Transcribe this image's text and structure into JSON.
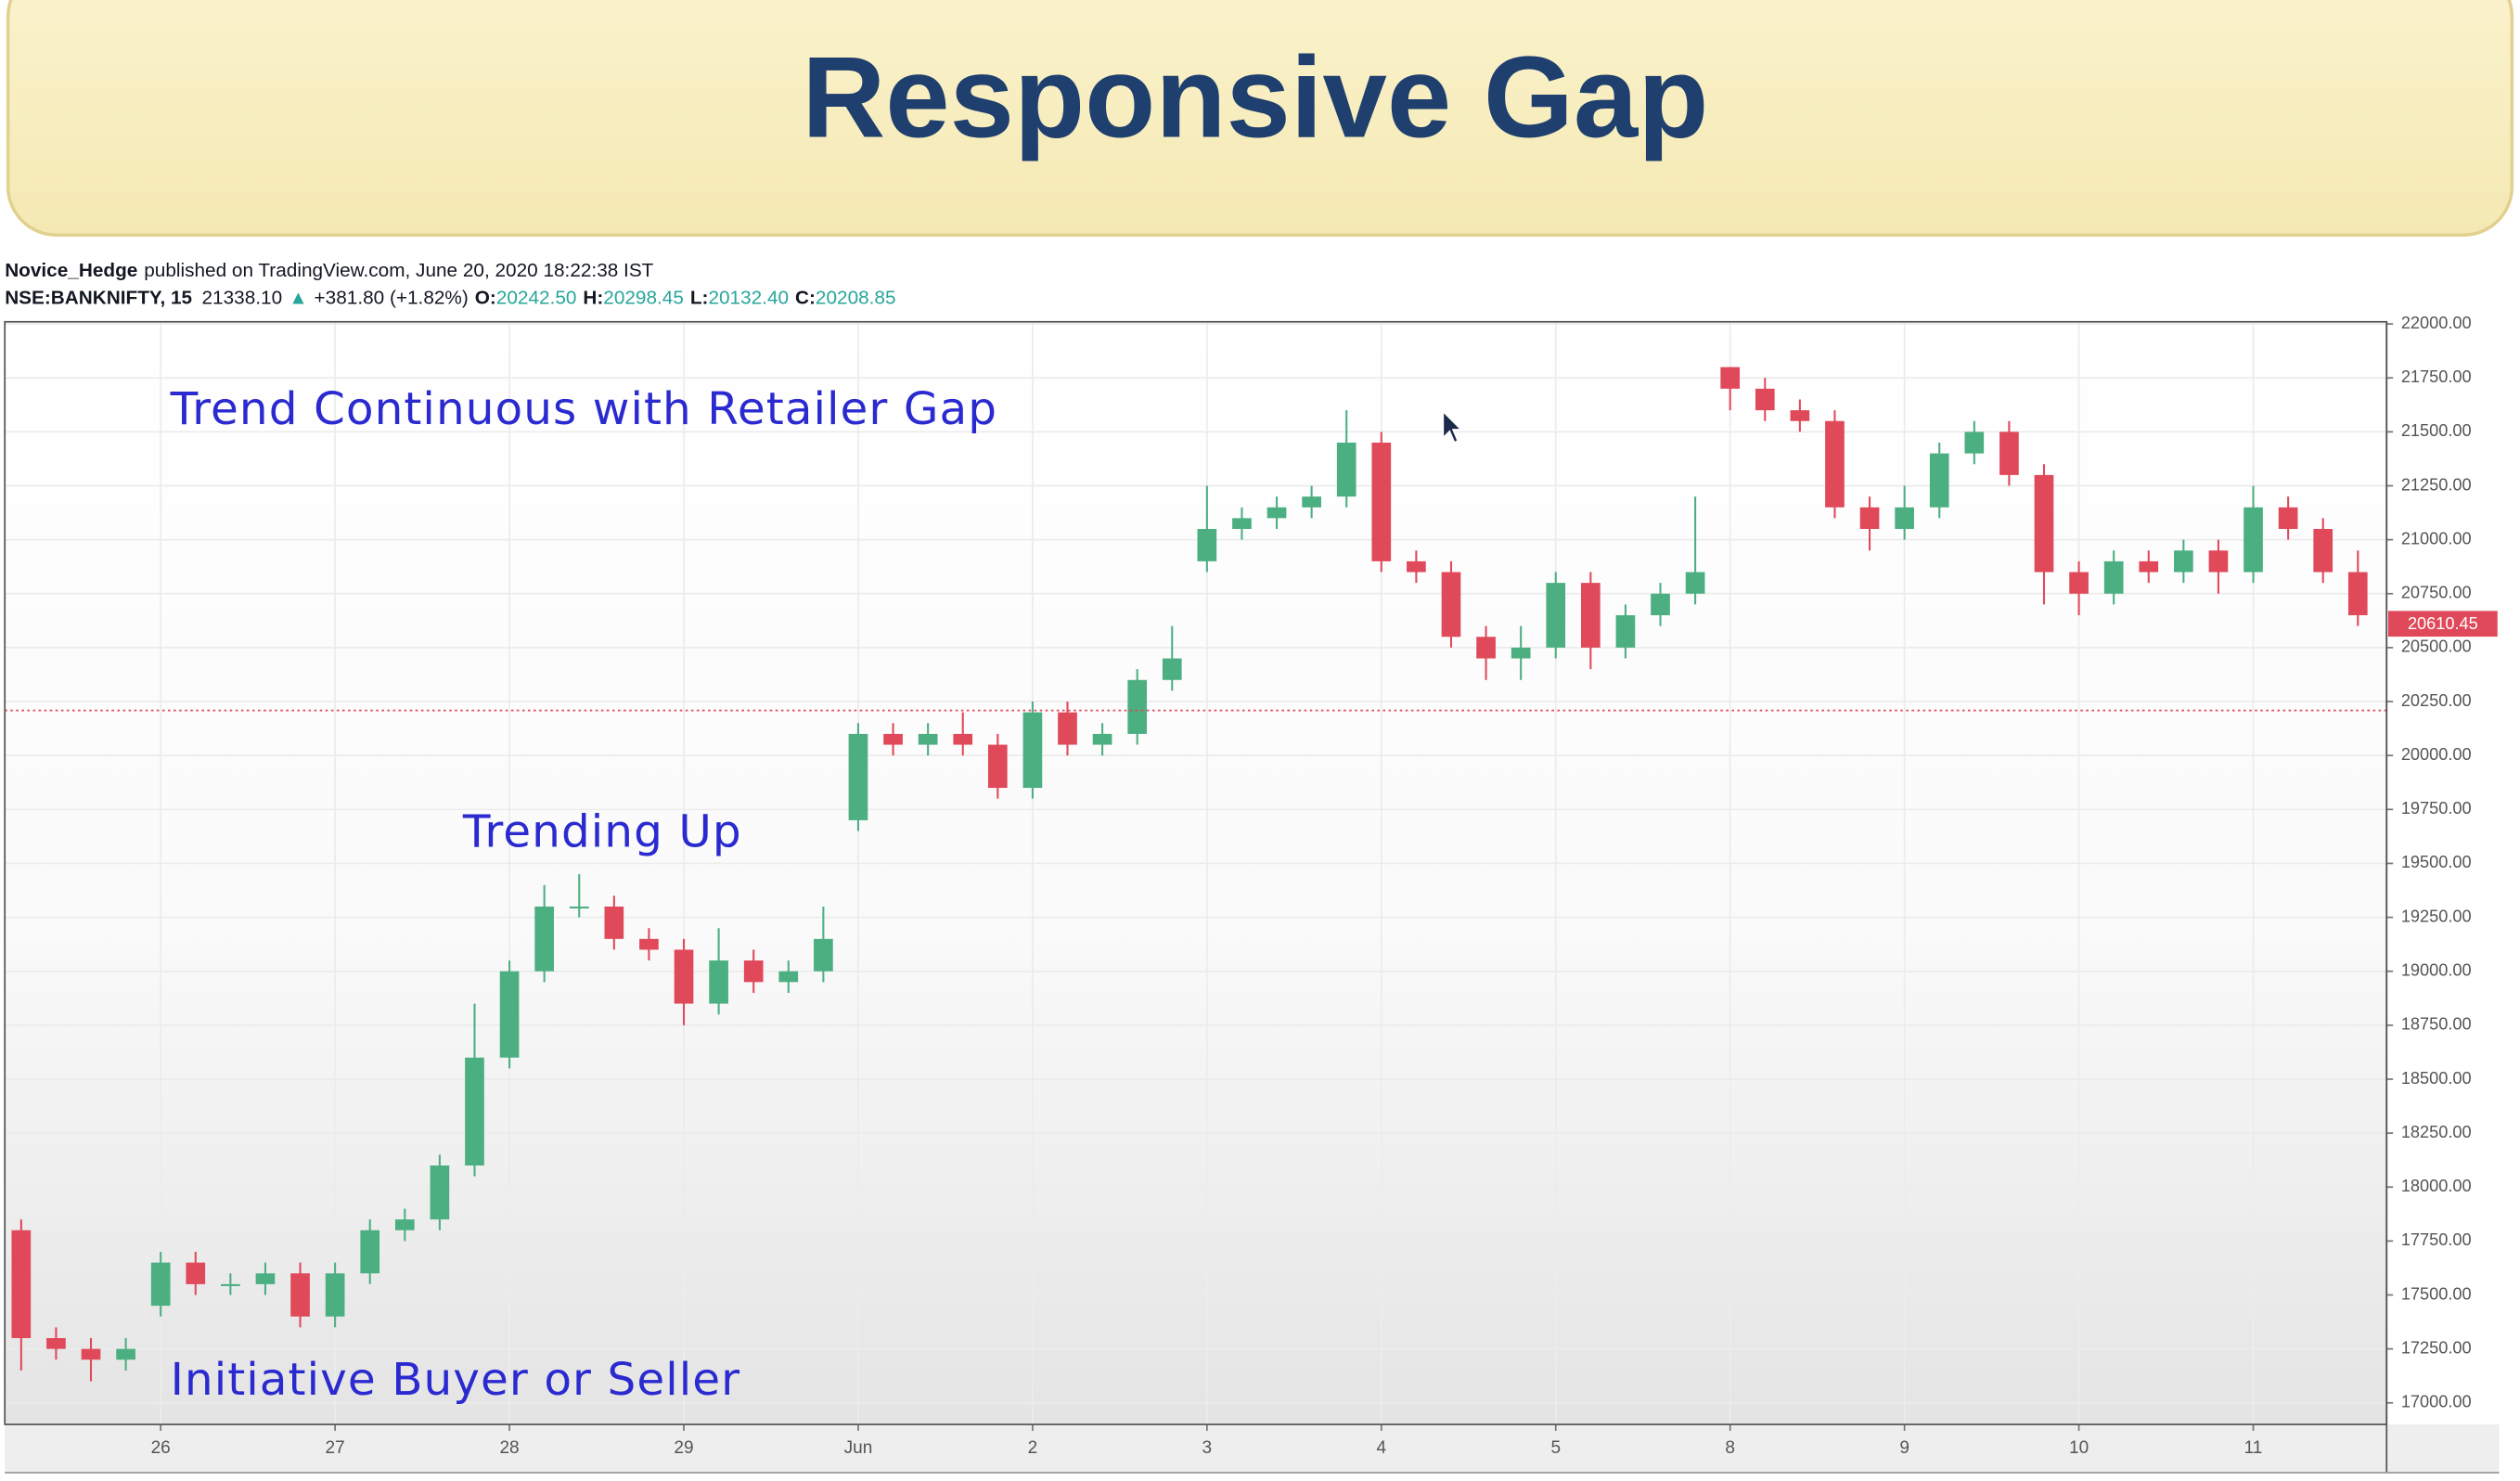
{
  "chart_data": {
    "type": "candlestick",
    "title": "Responsive Gap",
    "source": {
      "author": "Novice_Hedge",
      "published": "published on TradingView.com, June 20, 2020 18:22:38 IST",
      "symbol": "NSE:BANKNIFTY, 15",
      "price": "21338.10",
      "arrow": "▲",
      "change": "+381.80 (+1.82%)",
      "ohlc": [
        {
          "label": "O:",
          "value": "20242.50"
        },
        {
          "label": "H:",
          "value": "20298.45"
        },
        {
          "label": "L:",
          "value": "20132.40"
        },
        {
          "label": "C:",
          "value": "20208.85"
        }
      ]
    },
    "annotations": [
      "Trend Continuous with Retailer Gap",
      "Trending Up",
      "Initiative Buyer or Seller"
    ],
    "x": [
      0.2,
      0.4,
      0.6,
      0.8,
      1.0,
      1.2,
      1.4,
      1.6,
      1.8,
      2.0,
      2.2,
      2.4,
      2.6,
      2.8,
      3.0,
      3.2,
      3.4,
      3.6,
      3.8,
      4.0,
      4.2,
      4.4,
      4.6,
      4.8,
      5.0,
      5.2,
      5.4,
      5.6,
      5.8,
      6.0,
      6.2,
      6.4,
      6.6,
      6.8,
      7.0,
      7.2,
      7.4,
      7.6,
      7.8,
      8.0,
      8.2,
      8.4,
      8.6,
      8.8,
      9.0,
      9.2,
      9.4,
      9.6,
      9.8,
      10.0,
      10.2,
      10.4,
      10.6,
      10.8,
      11.0,
      11.2,
      11.4,
      11.6,
      11.8,
      12.0,
      12.2,
      12.4,
      12.6,
      12.8,
      13.0,
      13.2,
      13.4,
      13.6
    ],
    "open": [
      17800,
      17300,
      17250,
      17200,
      17450,
      17650,
      17550,
      17550,
      17600,
      17400,
      17600,
      17800,
      17850,
      18100,
      18600,
      19000,
      19300,
      19300,
      19150,
      19100,
      18850,
      19050,
      18950,
      19000,
      19700,
      20100,
      20050,
      20100,
      20050,
      19850,
      20200,
      20050,
      20100,
      20350,
      20900,
      21050,
      21100,
      21150,
      21200,
      21450,
      20900,
      20850,
      20550,
      20450,
      20500,
      20800,
      20500,
      20650,
      20750,
      21800,
      21700,
      21600,
      21550,
      21150,
      21050,
      21150,
      21400,
      21500,
      21300,
      20850,
      20750,
      20900,
      20850,
      20950,
      20850,
      21150,
      21050,
      20850
    ],
    "high": [
      17850,
      17350,
      17300,
      17300,
      17700,
      17700,
      17600,
      17650,
      17650,
      17650,
      17850,
      17900,
      18150,
      18850,
      19050,
      19400,
      19450,
      19350,
      19200,
      19150,
      19200,
      19100,
      19050,
      19300,
      20150,
      20150,
      20150,
      20200,
      20100,
      20250,
      20250,
      20150,
      20400,
      20600,
      21250,
      21150,
      21200,
      21250,
      21600,
      21500,
      20950,
      20900,
      20600,
      20600,
      20850,
      20850,
      20700,
      20800,
      21200,
      21800,
      21750,
      21650,
      21600,
      21200,
      21250,
      21450,
      21550,
      21550,
      21350,
      20900,
      20950,
      20950,
      21000,
      21000,
      21250,
      21200,
      21100,
      20950
    ],
    "low": [
      17150,
      17200,
      17100,
      17150,
      17400,
      17500,
      17500,
      17500,
      17350,
      17350,
      17550,
      17750,
      17800,
      18050,
      18550,
      18950,
      19250,
      19100,
      19050,
      18750,
      18800,
      18900,
      18900,
      18950,
      19650,
      20000,
      20000,
      20000,
      19800,
      19800,
      20000,
      20000,
      20050,
      20300,
      20850,
      21000,
      21050,
      21100,
      21150,
      20850,
      20800,
      20500,
      20350,
      20350,
      20450,
      20400,
      20450,
      20600,
      20700,
      21600,
      21550,
      21500,
      21100,
      20950,
      21000,
      21100,
      21350,
      21250,
      20700,
      20650,
      20700,
      20800,
      20800,
      20750,
      20800,
      21000,
      20800,
      20600
    ],
    "close": [
      17300,
      17250,
      17200,
      17250,
      17650,
      17550,
      17550,
      17600,
      17400,
      17600,
      17800,
      17850,
      18100,
      18600,
      19000,
      19300,
      19300,
      19150,
      19100,
      18850,
      19050,
      18950,
      19000,
      19150,
      20100,
      20050,
      20100,
      20050,
      19850,
      20200,
      20050,
      20100,
      20350,
      20450,
      21050,
      21100,
      21150,
      21200,
      21450,
      20900,
      20850,
      20550,
      20450,
      20500,
      20800,
      20500,
      20650,
      20750,
      20850,
      21700,
      21600,
      21550,
      21150,
      21050,
      21150,
      21400,
      21500,
      21300,
      20850,
      20750,
      20900,
      20850,
      20950,
      20850,
      21150,
      21050,
      20850,
      20650
    ],
    "up_color": "#4caf82",
    "down_color": "#e0495a",
    "last_price": 20610.45,
    "xlim": [
      0.12,
      13.76
    ],
    "xticks": [
      {
        "value": 1,
        "label": "26"
      },
      {
        "value": 2,
        "label": "27"
      },
      {
        "value": 3,
        "label": "28"
      },
      {
        "value": 4,
        "label": "29"
      },
      {
        "value": 5,
        "label": "Jun"
      },
      {
        "value": 6,
        "label": "2"
      },
      {
        "value": 7,
        "label": "3"
      },
      {
        "value": 8,
        "label": "4"
      },
      {
        "value": 9,
        "label": "5"
      },
      {
        "value": 10,
        "label": "8"
      },
      {
        "value": 11,
        "label": "9"
      },
      {
        "value": 12,
        "label": "10"
      },
      {
        "value": 13,
        "label": "11"
      }
    ],
    "ylim": [
      16900,
      22010
    ],
    "yticks": [
      {
        "value": 17000,
        "label": "17000.00"
      },
      {
        "value": 17250,
        "label": "17250.00"
      },
      {
        "value": 17500,
        "label": "17500.00"
      },
      {
        "value": 17750,
        "label": "17750.00"
      },
      {
        "value": 18000,
        "label": "18000.00"
      },
      {
        "value": 18250,
        "label": "18250.00"
      },
      {
        "value": 18500,
        "label": "18500.00"
      },
      {
        "value": 18750,
        "label": "18750.00"
      },
      {
        "value": 19000,
        "label": "19000.00"
      },
      {
        "value": 19250,
        "label": "19250.00"
      },
      {
        "value": 19500,
        "label": "19500.00"
      },
      {
        "value": 19750,
        "label": "19750.00"
      },
      {
        "value": 20000,
        "label": "20000.00"
      },
      {
        "value": 20250,
        "label": "20250.00"
      },
      {
        "value": 20500,
        "label": "20500.00"
      },
      {
        "value": 20750,
        "label": "20750.00"
      },
      {
        "value": 21000,
        "label": "21000.00"
      },
      {
        "value": 21250,
        "label": "21250.00"
      },
      {
        "value": 21500,
        "label": "21500.00"
      },
      {
        "value": 21750,
        "label": "21750.00"
      },
      {
        "value": 22000,
        "label": "22000.00"
      }
    ],
    "grid": true
  }
}
